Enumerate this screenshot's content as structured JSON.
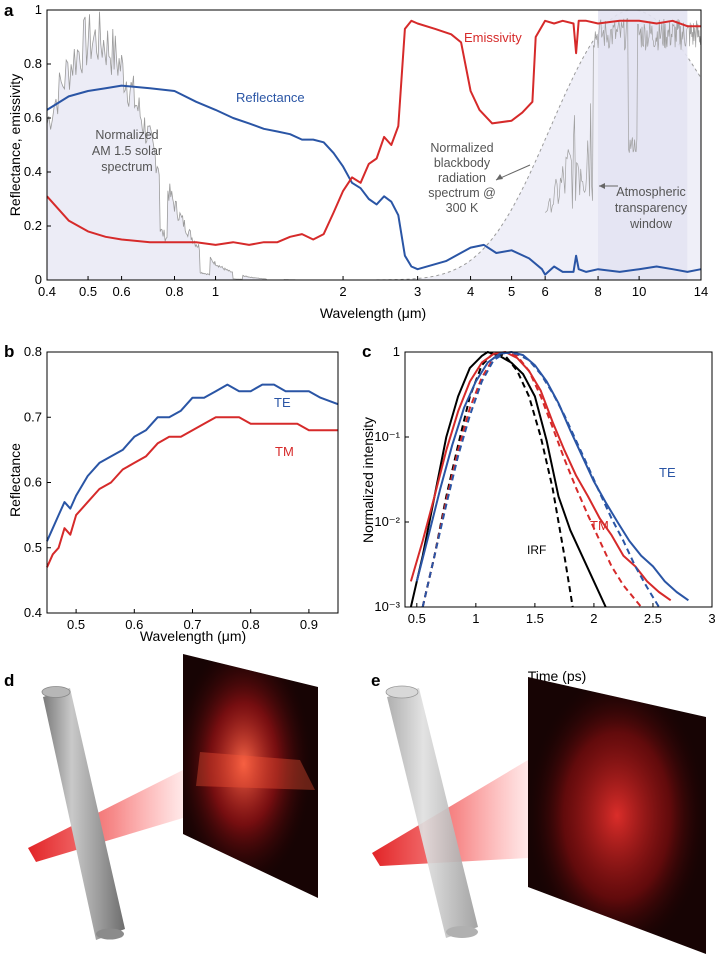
{
  "colors": {
    "red": "#d62a2a",
    "blue": "#2a55a5",
    "black": "#000000",
    "solar": "#9b9b9b",
    "fill": "#ececf6"
  },
  "panels": {
    "a": "a",
    "b": "b",
    "c": "c",
    "d": "d",
    "e": "e"
  },
  "chart_data": [
    {
      "id": "a",
      "type": "line",
      "xscale": "log",
      "xlim": [
        0.4,
        14
      ],
      "ylim": [
        0,
        1
      ],
      "xlabel": "Wavelength (μm)",
      "ylabel": "Reflectance, emissivity",
      "xticks": [
        0.4,
        0.5,
        0.6,
        0.8,
        1,
        2,
        3,
        4,
        5,
        6,
        8,
        10,
        14
      ],
      "xticklabels": [
        "0.4",
        "0.5",
        "0.6",
        "0.8",
        "1",
        "2",
        "3",
        "4",
        "5",
        "6",
        "8",
        "10",
        "14"
      ],
      "yticks": [
        0,
        0.2,
        0.4,
        0.6,
        0.8,
        1
      ],
      "yticklabels": [
        "0",
        "0.2",
        "0.4",
        "0.6",
        "0.8",
        "1"
      ],
      "series": [
        {
          "name": "Reflectance",
          "color": "#2a55a5",
          "x": [
            0.4,
            0.45,
            0.5,
            0.55,
            0.6,
            0.7,
            0.8,
            0.9,
            1.0,
            1.1,
            1.2,
            1.3,
            1.4,
            1.5,
            1.6,
            1.7,
            1.8,
            1.9,
            2.0,
            2.1,
            2.2,
            2.3,
            2.4,
            2.5,
            2.6,
            2.7,
            2.8,
            2.9,
            3.0,
            3.5,
            4.0,
            4.3,
            4.6,
            5.0,
            5.5,
            5.9,
            6.0,
            6.3,
            6.6,
            7.0,
            7.1,
            7.2,
            7.5,
            8.0,
            9.0,
            10.0,
            11.0,
            12.0,
            13.0,
            14.0
          ],
          "y": [
            0.63,
            0.68,
            0.7,
            0.71,
            0.72,
            0.71,
            0.7,
            0.66,
            0.63,
            0.6,
            0.58,
            0.56,
            0.55,
            0.54,
            0.52,
            0.52,
            0.51,
            0.47,
            0.42,
            0.36,
            0.34,
            0.3,
            0.28,
            0.31,
            0.29,
            0.24,
            0.09,
            0.05,
            0.04,
            0.07,
            0.12,
            0.13,
            0.1,
            0.11,
            0.08,
            0.04,
            0.02,
            0.05,
            0.03,
            0.03,
            0.09,
            0.04,
            0.03,
            0.04,
            0.03,
            0.04,
            0.05,
            0.04,
            0.03,
            0.04
          ]
        },
        {
          "name": "Emissivity",
          "color": "#d62a2a",
          "x": [
            0.4,
            0.45,
            0.5,
            0.55,
            0.6,
            0.7,
            0.8,
            0.9,
            1.0,
            1.1,
            1.2,
            1.3,
            1.4,
            1.5,
            1.6,
            1.7,
            1.8,
            1.9,
            2.0,
            2.1,
            2.2,
            2.3,
            2.4,
            2.5,
            2.6,
            2.7,
            2.8,
            2.9,
            3.0,
            3.3,
            3.6,
            3.8,
            4.0,
            4.2,
            4.5,
            5.0,
            5.3,
            5.6,
            5.7,
            6.0,
            6.3,
            6.6,
            7.0,
            7.1,
            7.2,
            7.5,
            8.0,
            9.0,
            10.0,
            11.0,
            12.0,
            13.0,
            14.0
          ],
          "y": [
            0.31,
            0.22,
            0.18,
            0.16,
            0.15,
            0.14,
            0.14,
            0.14,
            0.13,
            0.14,
            0.13,
            0.14,
            0.14,
            0.16,
            0.17,
            0.15,
            0.17,
            0.25,
            0.33,
            0.38,
            0.36,
            0.43,
            0.45,
            0.53,
            0.5,
            0.57,
            0.93,
            0.96,
            0.95,
            0.93,
            0.91,
            0.88,
            0.7,
            0.63,
            0.58,
            0.59,
            0.62,
            0.66,
            0.9,
            0.96,
            0.95,
            0.96,
            0.95,
            0.84,
            0.96,
            0.96,
            0.95,
            0.96,
            0.96,
            0.95,
            0.96,
            0.94,
            0.94
          ]
        }
      ],
      "annotations": [
        {
          "text": "Reflectance",
          "color": "#2a55a5"
        },
        {
          "text": "Emissivity",
          "color": "#d62a2a"
        },
        {
          "lines": [
            "Normalized",
            "AM 1.5 solar",
            "spectrum"
          ]
        },
        {
          "lines": [
            "Normalized",
            "blackbody",
            "radiation",
            "spectrum @",
            "300 K"
          ]
        },
        {
          "lines": [
            "Atmospheric",
            "transparency",
            "window"
          ]
        }
      ]
    },
    {
      "id": "b",
      "type": "line",
      "xlim": [
        0.45,
        0.95
      ],
      "ylim": [
        0.4,
        0.8
      ],
      "xlabel": "Wavelength (μm)",
      "ylabel": "Reflectance",
      "xticks": [
        0.5,
        0.6,
        0.7,
        0.8,
        0.9
      ],
      "xticklabels": [
        "0.5",
        "0.6",
        "0.7",
        "0.8",
        "0.9"
      ],
      "yticks": [
        0.4,
        0.5,
        0.6,
        0.7,
        0.8
      ],
      "yticklabels": [
        "0.4",
        "0.5",
        "0.6",
        "0.7",
        "0.8"
      ],
      "series": [
        {
          "name": "TE",
          "color": "#2a55a5",
          "x": [
            0.45,
            0.46,
            0.47,
            0.48,
            0.49,
            0.5,
            0.52,
            0.54,
            0.56,
            0.58,
            0.6,
            0.62,
            0.64,
            0.66,
            0.68,
            0.7,
            0.72,
            0.74,
            0.76,
            0.78,
            0.8,
            0.82,
            0.84,
            0.86,
            0.88,
            0.9,
            0.92,
            0.95
          ],
          "y": [
            0.51,
            0.53,
            0.55,
            0.57,
            0.56,
            0.58,
            0.61,
            0.63,
            0.64,
            0.65,
            0.67,
            0.68,
            0.7,
            0.7,
            0.71,
            0.73,
            0.73,
            0.74,
            0.75,
            0.74,
            0.74,
            0.75,
            0.75,
            0.74,
            0.74,
            0.74,
            0.73,
            0.72
          ]
        },
        {
          "name": "TM",
          "color": "#d62a2a",
          "x": [
            0.45,
            0.46,
            0.47,
            0.48,
            0.49,
            0.5,
            0.52,
            0.54,
            0.56,
            0.58,
            0.6,
            0.62,
            0.64,
            0.66,
            0.68,
            0.7,
            0.72,
            0.74,
            0.76,
            0.78,
            0.8,
            0.82,
            0.84,
            0.86,
            0.88,
            0.9,
            0.92,
            0.95
          ],
          "y": [
            0.47,
            0.49,
            0.5,
            0.53,
            0.52,
            0.55,
            0.57,
            0.59,
            0.6,
            0.62,
            0.63,
            0.64,
            0.66,
            0.67,
            0.67,
            0.68,
            0.69,
            0.7,
            0.7,
            0.7,
            0.69,
            0.69,
            0.69,
            0.69,
            0.69,
            0.68,
            0.68,
            0.68
          ]
        }
      ],
      "annotations": [
        {
          "text": "TE",
          "color": "#2a55a5"
        },
        {
          "text": "TM",
          "color": "#d62a2a"
        }
      ]
    },
    {
      "id": "c",
      "type": "line",
      "yscale": "log",
      "xlim": [
        0.4,
        3
      ],
      "ylim": [
        0.001,
        1
      ],
      "xlabel": "Time (ps)",
      "ylabel": "Normalized intensity",
      "xticks": [
        0.5,
        1,
        1.5,
        2,
        2.5,
        3
      ],
      "xticklabels": [
        "0.5",
        "1",
        "1.5",
        "2",
        "2.5",
        "3"
      ],
      "yticks": [
        0.001,
        0.01,
        0.1,
        1
      ],
      "yticklabels": [
        "10⁻³",
        "10⁻²",
        "10⁻¹",
        "1"
      ],
      "series": [
        {
          "name": "IRF",
          "color": "#000000",
          "style": "solid",
          "x": [
            0.45,
            0.55,
            0.65,
            0.75,
            0.85,
            0.95,
            1.05,
            1.1,
            1.2,
            1.3,
            1.4,
            1.5,
            1.6,
            1.7,
            1.8,
            1.9,
            2.0,
            2.1
          ],
          "y": [
            0.001,
            0.004,
            0.02,
            0.1,
            0.3,
            0.65,
            0.9,
            1.0,
            0.9,
            0.75,
            0.55,
            0.3,
            0.09,
            0.02,
            0.008,
            0.004,
            0.002,
            0.001
          ]
        },
        {
          "name": "IRF fit",
          "color": "#000000",
          "style": "dashed",
          "x": [
            0.55,
            0.65,
            0.75,
            0.85,
            0.95,
            1.05,
            1.15,
            1.25,
            1.35,
            1.45,
            1.55,
            1.65,
            1.75,
            1.82
          ],
          "y": [
            0.001,
            0.004,
            0.02,
            0.08,
            0.3,
            0.7,
            0.98,
            0.9,
            0.6,
            0.3,
            0.1,
            0.025,
            0.004,
            0.001
          ]
        },
        {
          "name": "TM",
          "color": "#d62a2a",
          "style": "solid",
          "x": [
            0.45,
            0.55,
            0.65,
            0.75,
            0.85,
            0.95,
            1.05,
            1.15,
            1.25,
            1.35,
            1.45,
            1.55,
            1.65,
            1.75,
            1.85,
            1.95,
            2.05,
            2.15,
            2.25,
            2.35,
            2.45,
            2.55,
            2.65
          ],
          "y": [
            0.002,
            0.006,
            0.02,
            0.07,
            0.2,
            0.45,
            0.75,
            0.95,
            1.0,
            0.85,
            0.6,
            0.35,
            0.15,
            0.07,
            0.035,
            0.02,
            0.011,
            0.007,
            0.004,
            0.003,
            0.002,
            0.0015,
            0.0012
          ]
        },
        {
          "name": "TM fit",
          "color": "#d62a2a",
          "style": "dashed",
          "x": [
            0.55,
            0.65,
            0.75,
            0.85,
            0.95,
            1.05,
            1.15,
            1.25,
            1.35,
            1.45,
            1.55,
            1.65,
            1.75,
            1.85,
            1.95,
            2.05,
            2.15,
            2.25,
            2.4
          ],
          "y": [
            0.001,
            0.004,
            0.018,
            0.07,
            0.22,
            0.5,
            0.85,
            0.99,
            0.9,
            0.6,
            0.3,
            0.13,
            0.055,
            0.025,
            0.012,
            0.006,
            0.003,
            0.0018,
            0.001
          ]
        },
        {
          "name": "TE",
          "color": "#2a55a5",
          "style": "solid",
          "x": [
            0.5,
            0.6,
            0.7,
            0.8,
            0.9,
            1.0,
            1.1,
            1.2,
            1.3,
            1.4,
            1.5,
            1.6,
            1.7,
            1.8,
            1.9,
            2.0,
            2.1,
            2.2,
            2.3,
            2.4,
            2.5,
            2.6,
            2.7,
            2.8
          ],
          "y": [
            0.002,
            0.007,
            0.025,
            0.08,
            0.22,
            0.45,
            0.75,
            0.95,
            1.0,
            0.92,
            0.7,
            0.45,
            0.25,
            0.12,
            0.06,
            0.03,
            0.017,
            0.01,
            0.006,
            0.004,
            0.003,
            0.002,
            0.0015,
            0.0012
          ]
        },
        {
          "name": "TE fit",
          "color": "#2a55a5",
          "style": "dashed",
          "x": [
            0.55,
            0.65,
            0.75,
            0.85,
            0.95,
            1.05,
            1.15,
            1.25,
            1.35,
            1.45,
            1.55,
            1.65,
            1.75,
            1.85,
            1.95,
            2.05,
            2.15,
            2.25,
            2.35,
            2.45,
            2.55
          ],
          "y": [
            0.001,
            0.004,
            0.016,
            0.06,
            0.18,
            0.45,
            0.8,
            0.98,
            0.95,
            0.8,
            0.55,
            0.33,
            0.18,
            0.09,
            0.045,
            0.022,
            0.011,
            0.006,
            0.003,
            0.0017,
            0.001
          ]
        }
      ],
      "annotations": [
        {
          "text": "TE",
          "color": "#2a55a5"
        },
        {
          "text": "TM",
          "color": "#d62a2a"
        },
        {
          "text": "IRF",
          "color": "#000000"
        }
      ]
    }
  ]
}
